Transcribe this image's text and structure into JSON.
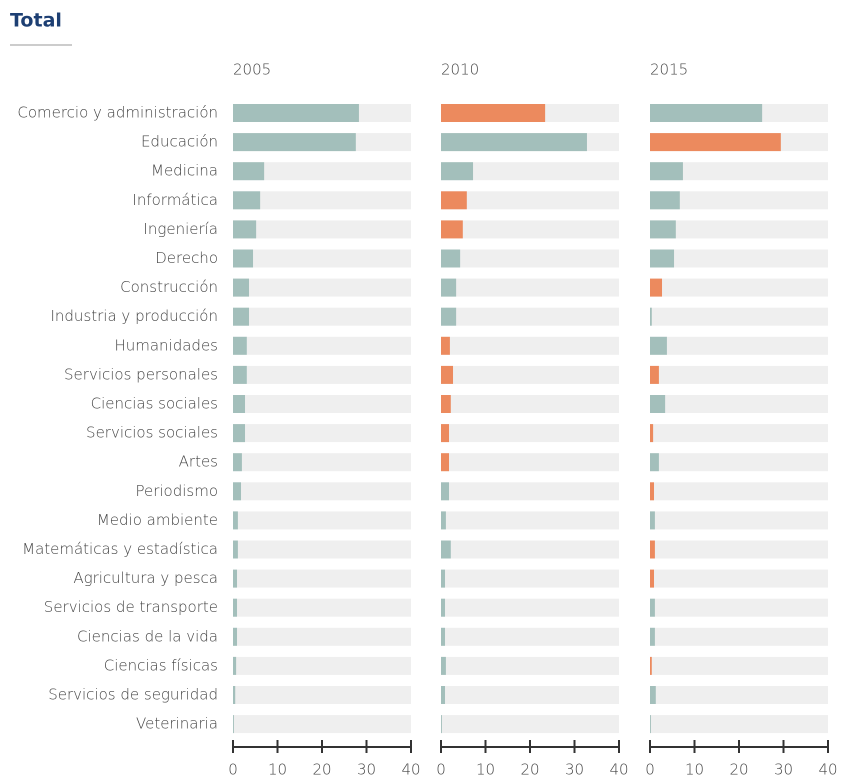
{
  "title": "Total",
  "chart_data": [
    {
      "type": "hbar",
      "title": "2005",
      "categories": [
        "Comercio y administración",
        "Educación",
        "Medicina",
        "Informática",
        "Ingeniería",
        "Derecho",
        "Construcción",
        "Industria y producción",
        "Humanidades",
        "Servicios personales",
        "Ciencias sociales",
        "Servicios sociales",
        "Artes",
        "Periodismo",
        "Medio ambiente",
        "Matemáticas y estadística",
        "Agricultura y pesca",
        "Servicios de transporte",
        "Ciencias de la vida",
        "Ciencias físicas",
        "Servicios de seguridad",
        "Veterinaria"
      ],
      "values": [
        28.3,
        27.6,
        7.0,
        6.1,
        5.2,
        4.5,
        3.6,
        3.6,
        3.1,
        3.1,
        2.7,
        2.7,
        2.0,
        1.8,
        1.1,
        1.1,
        0.9,
        0.9,
        0.9,
        0.7,
        0.5,
        0.2
      ],
      "colors": [
        "#a3bfbb",
        "#a3bfbb",
        "#a3bfbb",
        "#a3bfbb",
        "#a3bfbb",
        "#a3bfbb",
        "#a3bfbb",
        "#a3bfbb",
        "#a3bfbb",
        "#a3bfbb",
        "#a3bfbb",
        "#a3bfbb",
        "#a3bfbb",
        "#a3bfbb",
        "#a3bfbb",
        "#a3bfbb",
        "#a3bfbb",
        "#a3bfbb",
        "#a3bfbb",
        "#a3bfbb",
        "#a3bfbb",
        "#a3bfbb"
      ],
      "xlim": [
        0,
        40
      ],
      "xticks": [
        0,
        10,
        20,
        30,
        40
      ]
    },
    {
      "type": "hbar",
      "title": "2010",
      "values": [
        23.4,
        32.8,
        7.2,
        5.8,
        4.9,
        4.3,
        3.4,
        3.4,
        2.0,
        2.7,
        2.2,
        1.8,
        1.8,
        1.8,
        1.1,
        2.2,
        0.9,
        0.9,
        0.9,
        1.1,
        0.9,
        0.2
      ],
      "colors": [
        "#ec8a5e",
        "#a3bfbb",
        "#a3bfbb",
        "#ec8a5e",
        "#ec8a5e",
        "#a3bfbb",
        "#a3bfbb",
        "#a3bfbb",
        "#ec8a5e",
        "#ec8a5e",
        "#ec8a5e",
        "#ec8a5e",
        "#ec8a5e",
        "#a3bfbb",
        "#a3bfbb",
        "#a3bfbb",
        "#a3bfbb",
        "#a3bfbb",
        "#a3bfbb",
        "#a3bfbb",
        "#a3bfbb",
        "#a3bfbb"
      ],
      "xlim": [
        0,
        40
      ],
      "xticks": [
        0,
        10,
        20,
        30,
        40
      ]
    },
    {
      "type": "hbar",
      "title": "2015",
      "values": [
        25.2,
        29.4,
        7.4,
        6.7,
        5.8,
        5.4,
        2.7,
        0.4,
        3.8,
        2.0,
        3.4,
        0.7,
        2.0,
        0.9,
        1.1,
        1.1,
        0.9,
        1.1,
        1.1,
        0.4,
        1.3,
        0.2
      ],
      "colors": [
        "#a3bfbb",
        "#ec8a5e",
        "#a3bfbb",
        "#a3bfbb",
        "#a3bfbb",
        "#a3bfbb",
        "#ec8a5e",
        "#a3bfbb",
        "#a3bfbb",
        "#ec8a5e",
        "#a3bfbb",
        "#ec8a5e",
        "#a3bfbb",
        "#ec8a5e",
        "#a3bfbb",
        "#ec8a5e",
        "#ec8a5e",
        "#a3bfbb",
        "#a3bfbb",
        "#ec8a5e",
        "#a3bfbb",
        "#a3bfbb"
      ],
      "xlim": [
        0,
        40
      ],
      "xticks": [
        0,
        10,
        20,
        30,
        40
      ]
    }
  ]
}
